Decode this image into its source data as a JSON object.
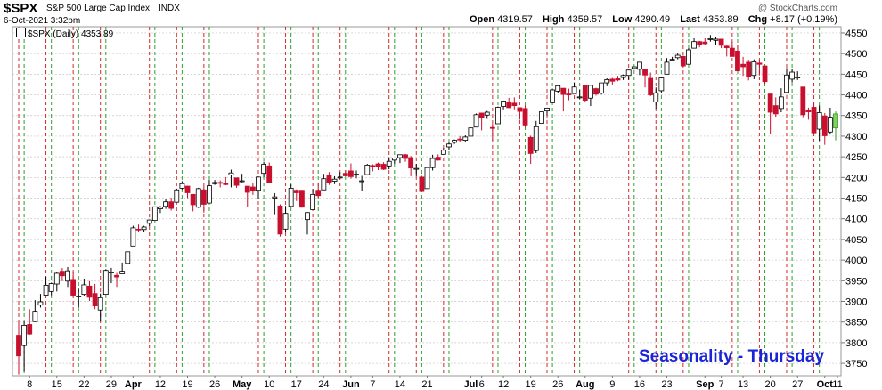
{
  "header": {
    "symbol": "$SPX",
    "name": "S&P 500 Large Cap Index",
    "exchange": "INDX",
    "date": "6-Oct-2021 3:32pm",
    "source": "@ StockCharts.com"
  },
  "ohlc": [
    {
      "label": "Open",
      "value": "4319.57"
    },
    {
      "label": "High",
      "value": "4359.57"
    },
    {
      "label": "Low",
      "value": "4290.49"
    },
    {
      "label": "Last",
      "value": "4353.89"
    },
    {
      "label": "Chg",
      "value": "+8.17 (+0.19%)"
    }
  ],
  "legend": {
    "text": "$SPX (Daily) 4353.89"
  },
  "annotation": {
    "text": "Seasonality - Thursday"
  },
  "colors": {
    "background": "#ffffff",
    "grid": "#c8c8c8",
    "up_candle_fill": "#ffffff",
    "down_candle_fill": "#c8102e",
    "last_candle_fill": "#7fd35a",
    "red_markers": "#d62728",
    "green_markers": "#2ca02c",
    "annotation": "#1a24d9"
  },
  "chart_data": {
    "type": "candlestick",
    "period": "daily",
    "series_name": "$SPX",
    "ylim": [
      3720,
      4565
    ],
    "y_ticks": [
      3750,
      3800,
      3850,
      3900,
      3950,
      4000,
      4050,
      4100,
      4150,
      4200,
      4250,
      4300,
      4350,
      4400,
      4450,
      4500,
      4550
    ],
    "x_tick_labels": [
      "8",
      "15",
      "22",
      "29",
      "Apr",
      "12",
      "19",
      "26",
      "May",
      "10",
      "17",
      "24",
      "Jun",
      "7",
      "14",
      "21",
      "Jul",
      "6",
      "12",
      "19",
      "26",
      "Aug",
      "9",
      "16",
      "23",
      "Sep",
      "7",
      "13",
      "20",
      "27",
      "Oct",
      "11"
    ],
    "bold_x_ticks": [
      "Apr",
      "May",
      "Jun",
      "Jul",
      "Aug",
      "Sep",
      "Oct"
    ],
    "red_dashed_lines": [
      "Mar 4",
      "Mar 11",
      "Mar 18",
      "Mar 25",
      "Apr 8",
      "Apr 15",
      "Apr 22",
      "May 6",
      "May 13",
      "May 20",
      "May 27",
      "Jun 10",
      "Jun 17",
      "Jun 24",
      "Jul 8",
      "Jul 15",
      "Jul 22",
      "Jul 29",
      "Aug 12",
      "Aug 19",
      "Aug 26",
      "Sep 9",
      "Sep 16",
      "Sep 23",
      "Sep 30"
    ],
    "green_dashed_lines": [
      "Mar 5",
      "Mar 12",
      "Mar 19",
      "Mar 26",
      "Apr 9",
      "Apr 16",
      "Apr 23",
      "May 7",
      "May 14",
      "May 21",
      "May 28",
      "Jun 11",
      "Jun 18",
      "Jun 25",
      "Jul 9",
      "Jul 16",
      "Jul 23",
      "Jul 30",
      "Aug 13",
      "Aug 20",
      "Aug 27",
      "Sep 10",
      "Sep 17",
      "Sep 24",
      "Oct 1"
    ],
    "candles": [
      {
        "d": "Mar 4",
        "o": 3818,
        "h": 3853,
        "l": 3723,
        "c": 3768
      },
      {
        "d": "Mar 5",
        "o": 3793,
        "h": 3851,
        "l": 3730,
        "c": 3842
      },
      {
        "d": "Mar 8",
        "o": 3844,
        "h": 3881,
        "l": 3819,
        "c": 3821
      },
      {
        "d": "Mar 9",
        "o": 3851,
        "h": 3903,
        "l": 3851,
        "c": 3876
      },
      {
        "d": "Mar 10",
        "o": 3891,
        "h": 3918,
        "l": 3885,
        "c": 3899
      },
      {
        "d": "Mar 11",
        "o": 3915,
        "h": 3960,
        "l": 3915,
        "c": 3939
      },
      {
        "d": "Mar 12",
        "o": 3924,
        "h": 3944,
        "l": 3915,
        "c": 3943
      },
      {
        "d": "Mar 15",
        "o": 3942,
        "h": 3970,
        "l": 3924,
        "c": 3968
      },
      {
        "d": "Mar 16",
        "o": 3973,
        "h": 3981,
        "l": 3949,
        "c": 3962
      },
      {
        "d": "Mar 17",
        "o": 3949,
        "h": 3983,
        "l": 3935,
        "c": 3974
      },
      {
        "d": "Mar 18",
        "o": 3953,
        "h": 3970,
        "l": 3913,
        "c": 3915
      },
      {
        "d": "Mar 19",
        "o": 3913,
        "h": 3930,
        "l": 3886,
        "c": 3913
      },
      {
        "d": "Mar 22",
        "o": 3917,
        "h": 3955,
        "l": 3914,
        "c": 3940
      },
      {
        "d": "Mar 23",
        "o": 3937,
        "h": 3949,
        "l": 3901,
        "c": 3910
      },
      {
        "d": "Mar 24",
        "o": 3919,
        "h": 3942,
        "l": 3881,
        "c": 3889
      },
      {
        "d": "Mar 25",
        "o": 3879,
        "h": 3919,
        "l": 3853,
        "c": 3909
      },
      {
        "d": "Mar 26",
        "o": 3917,
        "h": 3978,
        "l": 3917,
        "c": 3975
      },
      {
        "d": "Mar 29",
        "o": 3969,
        "h": 3981,
        "l": 3944,
        "c": 3971
      },
      {
        "d": "Mar 30",
        "o": 3963,
        "h": 3969,
        "l": 3935,
        "c": 3959
      },
      {
        "d": "Mar 31",
        "o": 3967,
        "h": 3994,
        "l": 3967,
        "c": 3973
      },
      {
        "d": "Apr 1",
        "o": 3992,
        "h": 4018,
        "l": 3992,
        "c": 4020
      },
      {
        "d": "Apr 5",
        "o": 4034,
        "h": 4083,
        "l": 4034,
        "c": 4078
      },
      {
        "d": "Apr 6",
        "o": 4075,
        "h": 4086,
        "l": 4068,
        "c": 4074
      },
      {
        "d": "Apr 7",
        "o": 4074,
        "h": 4083,
        "l": 4068,
        "c": 4080
      },
      {
        "d": "Apr 8",
        "o": 4089,
        "h": 4098,
        "l": 4082,
        "c": 4097
      },
      {
        "d": "Apr 9",
        "o": 4096,
        "h": 4129,
        "l": 4096,
        "c": 4129
      },
      {
        "d": "Apr 12",
        "o": 4124,
        "h": 4131,
        "l": 4114,
        "c": 4128
      },
      {
        "d": "Apr 13",
        "o": 4130,
        "h": 4148,
        "l": 4124,
        "c": 4141
      },
      {
        "d": "Apr 14",
        "o": 4141,
        "h": 4151,
        "l": 4120,
        "c": 4125
      },
      {
        "d": "Apr 15",
        "o": 4140,
        "h": 4173,
        "l": 4140,
        "c": 4170
      },
      {
        "d": "Apr 16",
        "o": 4174,
        "h": 4191,
        "l": 4171,
        "c": 4185
      },
      {
        "d": "Apr 19",
        "o": 4179,
        "h": 4180,
        "l": 4150,
        "c": 4163
      },
      {
        "d": "Apr 20",
        "o": 4159,
        "h": 4159,
        "l": 4118,
        "c": 4134
      },
      {
        "d": "Apr 21",
        "o": 4128,
        "h": 4175,
        "l": 4126,
        "c": 4173
      },
      {
        "d": "Apr 22",
        "o": 4170,
        "h": 4179,
        "l": 4115,
        "c": 4135
      },
      {
        "d": "Apr 23",
        "o": 4138,
        "h": 4194,
        "l": 4138,
        "c": 4180
      },
      {
        "d": "Apr 26",
        "o": 4185,
        "h": 4194,
        "l": 4182,
        "c": 4188
      },
      {
        "d": "Apr 27",
        "o": 4188,
        "h": 4193,
        "l": 4176,
        "c": 4187
      },
      {
        "d": "Apr 28",
        "o": 4185,
        "h": 4201,
        "l": 4181,
        "c": 4183
      },
      {
        "d": "Apr 29",
        "o": 4206,
        "h": 4219,
        "l": 4176,
        "c": 4211
      },
      {
        "d": "Apr 30",
        "o": 4199,
        "h": 4199,
        "l": 4175,
        "c": 4181
      },
      {
        "d": "May 3",
        "o": 4192,
        "h": 4209,
        "l": 4188,
        "c": 4192
      },
      {
        "d": "May 4",
        "o": 4179,
        "h": 4179,
        "l": 4128,
        "c": 4164
      },
      {
        "d": "May 5",
        "o": 4177,
        "h": 4187,
        "l": 4158,
        "c": 4167
      },
      {
        "d": "May 6",
        "o": 4169,
        "h": 4202,
        "l": 4147,
        "c": 4201
      },
      {
        "d": "May 7",
        "o": 4210,
        "h": 4238,
        "l": 4201,
        "c": 4232
      },
      {
        "d": "May 10",
        "o": 4228,
        "h": 4236,
        "l": 4188,
        "c": 4188
      },
      {
        "d": "May 11",
        "o": 4150,
        "h": 4162,
        "l": 4111,
        "c": 4153
      },
      {
        "d": "May 12",
        "o": 4131,
        "h": 4135,
        "l": 4057,
        "c": 4063
      },
      {
        "d": "May 13",
        "o": 4075,
        "h": 4131,
        "l": 4069,
        "c": 4113
      },
      {
        "d": "May 14",
        "o": 4130,
        "h": 4183,
        "l": 4130,
        "c": 4174
      },
      {
        "d": "May 17",
        "o": 4169,
        "h": 4171,
        "l": 4143,
        "c": 4163
      },
      {
        "d": "May 18",
        "o": 4169,
        "h": 4170,
        "l": 4127,
        "c": 4128
      },
      {
        "d": "May 19",
        "o": 4098,
        "h": 4116,
        "l": 4062,
        "c": 4115
      },
      {
        "d": "May 20",
        "o": 4122,
        "h": 4172,
        "l": 4122,
        "c": 4159
      },
      {
        "d": "May 21",
        "o": 4169,
        "h": 4188,
        "l": 4151,
        "c": 4156
      },
      {
        "d": "May 24",
        "o": 4170,
        "h": 4209,
        "l": 4170,
        "c": 4197
      },
      {
        "d": "May 25",
        "o": 4205,
        "h": 4213,
        "l": 4182,
        "c": 4188
      },
      {
        "d": "May 26",
        "o": 4191,
        "h": 4203,
        "l": 4184,
        "c": 4196
      },
      {
        "d": "May 27",
        "o": 4201,
        "h": 4213,
        "l": 4197,
        "c": 4201
      },
      {
        "d": "May 28",
        "o": 4210,
        "h": 4218,
        "l": 4203,
        "c": 4204
      },
      {
        "d": "Jun 1",
        "o": 4216,
        "h": 4234,
        "l": 4197,
        "c": 4202
      },
      {
        "d": "Jun 2",
        "o": 4206,
        "h": 4217,
        "l": 4198,
        "c": 4208
      },
      {
        "d": "Jun 3",
        "o": 4191,
        "h": 4204,
        "l": 4167,
        "c": 4192
      },
      {
        "d": "Jun 4",
        "o": 4207,
        "h": 4233,
        "l": 4207,
        "c": 4230
      },
      {
        "d": "Jun 7",
        "o": 4229,
        "h": 4232,
        "l": 4215,
        "c": 4227
      },
      {
        "d": "Jun 8",
        "o": 4233,
        "h": 4236,
        "l": 4218,
        "c": 4227
      },
      {
        "d": "Jun 9",
        "o": 4232,
        "h": 4237,
        "l": 4218,
        "c": 4220
      },
      {
        "d": "Jun 10",
        "o": 4228,
        "h": 4249,
        "l": 4220,
        "c": 4239
      },
      {
        "d": "Jun 11",
        "o": 4242,
        "h": 4248,
        "l": 4233,
        "c": 4247
      },
      {
        "d": "Jun 14",
        "o": 4248,
        "h": 4255,
        "l": 4235,
        "c": 4255
      },
      {
        "d": "Jun 15",
        "o": 4255,
        "h": 4257,
        "l": 4238,
        "c": 4246
      },
      {
        "d": "Jun 16",
        "o": 4248,
        "h": 4252,
        "l": 4203,
        "c": 4223
      },
      {
        "d": "Jun 17",
        "o": 4220,
        "h": 4233,
        "l": 4203,
        "c": 4222
      },
      {
        "d": "Jun 18",
        "o": 4201,
        "h": 4204,
        "l": 4165,
        "c": 4166
      },
      {
        "d": "Jun 21",
        "o": 4173,
        "h": 4226,
        "l": 4173,
        "c": 4224
      },
      {
        "d": "Jun 22",
        "o": 4224,
        "h": 4255,
        "l": 4217,
        "c": 4246
      },
      {
        "d": "Jun 23",
        "o": 4249,
        "h": 4256,
        "l": 4241,
        "c": 4242
      },
      {
        "d": "Jun 24",
        "o": 4256,
        "h": 4271,
        "l": 4256,
        "c": 4266
      },
      {
        "d": "Jun 25",
        "o": 4274,
        "h": 4286,
        "l": 4267,
        "c": 4281
      },
      {
        "d": "Jun 28",
        "o": 4285,
        "h": 4292,
        "l": 4281,
        "c": 4290
      },
      {
        "d": "Jun 29",
        "o": 4293,
        "h": 4300,
        "l": 4287,
        "c": 4291
      },
      {
        "d": "Jun 30",
        "o": 4290,
        "h": 4302,
        "l": 4287,
        "c": 4298
      },
      {
        "d": "Jul 1",
        "o": 4300,
        "h": 4320,
        "l": 4300,
        "c": 4320
      },
      {
        "d": "Jul 2",
        "o": 4322,
        "h": 4355,
        "l": 4322,
        "c": 4352
      },
      {
        "d": "Jul 6",
        "o": 4356,
        "h": 4356,
        "l": 4314,
        "c": 4344
      },
      {
        "d": "Jul 7",
        "o": 4351,
        "h": 4361,
        "l": 4342,
        "c": 4358
      },
      {
        "d": "Jul 8",
        "o": 4321,
        "h": 4330,
        "l": 4289,
        "c": 4320
      },
      {
        "d": "Jul 9",
        "o": 4330,
        "h": 4372,
        "l": 4330,
        "c": 4370
      },
      {
        "d": "Jul 12",
        "o": 4372,
        "h": 4386,
        "l": 4365,
        "c": 4385
      },
      {
        "d": "Jul 13",
        "o": 4381,
        "h": 4393,
        "l": 4368,
        "c": 4369
      },
      {
        "d": "Jul 14",
        "o": 4380,
        "h": 4394,
        "l": 4365,
        "c": 4374
      },
      {
        "d": "Jul 15",
        "o": 4369,
        "h": 4369,
        "l": 4340,
        "c": 4360
      },
      {
        "d": "Jul 16",
        "o": 4367,
        "h": 4375,
        "l": 4322,
        "c": 4327
      },
      {
        "d": "Jul 19",
        "o": 4297,
        "h": 4301,
        "l": 4233,
        "c": 4258
      },
      {
        "d": "Jul 20",
        "o": 4265,
        "h": 4337,
        "l": 4259,
        "c": 4323
      },
      {
        "d": "Jul 21",
        "o": 4331,
        "h": 4359,
        "l": 4331,
        "c": 4359
      },
      {
        "d": "Jul 22",
        "o": 4361,
        "h": 4369,
        "l": 4350,
        "c": 4368
      },
      {
        "d": "Jul 23",
        "o": 4381,
        "h": 4415,
        "l": 4381,
        "c": 4412
      },
      {
        "d": "Jul 26",
        "o": 4409,
        "h": 4422,
        "l": 4405,
        "c": 4422
      },
      {
        "d": "Jul 27",
        "o": 4416,
        "h": 4416,
        "l": 4360,
        "c": 4401
      },
      {
        "d": "Jul 28",
        "o": 4402,
        "h": 4415,
        "l": 4387,
        "c": 4400
      },
      {
        "d": "Jul 29",
        "o": 4403,
        "h": 4430,
        "l": 4403,
        "c": 4419
      },
      {
        "d": "Jul 30",
        "o": 4395,
        "h": 4412,
        "l": 4389,
        "c": 4395
      },
      {
        "d": "Aug 2",
        "o": 4422,
        "h": 4422,
        "l": 4384,
        "c": 4387
      },
      {
        "d": "Aug 3",
        "o": 4392,
        "h": 4423,
        "l": 4373,
        "c": 4423
      },
      {
        "d": "Aug 4",
        "o": 4415,
        "h": 4417,
        "l": 4398,
        "c": 4402
      },
      {
        "d": "Aug 5",
        "o": 4404,
        "h": 4429,
        "l": 4401,
        "c": 4429
      },
      {
        "d": "Aug 6",
        "o": 4429,
        "h": 4440,
        "l": 4421,
        "c": 4437
      },
      {
        "d": "Aug 9",
        "o": 4438,
        "h": 4441,
        "l": 4425,
        "c": 4433
      },
      {
        "d": "Aug 10",
        "o": 4439,
        "h": 4446,
        "l": 4433,
        "c": 4436
      },
      {
        "d": "Aug 11",
        "o": 4442,
        "h": 4449,
        "l": 4436,
        "c": 4447
      },
      {
        "d": "Aug 12",
        "o": 4447,
        "h": 4461,
        "l": 4436,
        "c": 4460
      },
      {
        "d": "Aug 13",
        "o": 4464,
        "h": 4468,
        "l": 4461,
        "c": 4468
      },
      {
        "d": "Aug 16",
        "o": 4462,
        "h": 4480,
        "l": 4448,
        "c": 4479
      },
      {
        "d": "Aug 17",
        "o": 4462,
        "h": 4462,
        "l": 4418,
        "c": 4448
      },
      {
        "d": "Aug 18",
        "o": 4440,
        "h": 4454,
        "l": 4397,
        "c": 4400
      },
      {
        "d": "Aug 19",
        "o": 4383,
        "h": 4418,
        "l": 4367,
        "c": 4405
      },
      {
        "d": "Aug 20",
        "o": 4410,
        "h": 4444,
        "l": 4406,
        "c": 4441
      },
      {
        "d": "Aug 23",
        "o": 4450,
        "h": 4489,
        "l": 4450,
        "c": 4479
      },
      {
        "d": "Aug 24",
        "o": 4484,
        "h": 4492,
        "l": 4482,
        "c": 4486
      },
      {
        "d": "Aug 25",
        "o": 4490,
        "h": 4501,
        "l": 4486,
        "c": 4496
      },
      {
        "d": "Aug 26",
        "o": 4493,
        "h": 4495,
        "l": 4468,
        "c": 4470
      },
      {
        "d": "Aug 27",
        "o": 4474,
        "h": 4513,
        "l": 4474,
        "c": 4509
      },
      {
        "d": "Aug 30",
        "o": 4513,
        "h": 4537,
        "l": 4513,
        "c": 4529
      },
      {
        "d": "Aug 31",
        "o": 4529,
        "h": 4531,
        "l": 4515,
        "c": 4522
      },
      {
        "d": "Sep 1",
        "o": 4528,
        "h": 4537,
        "l": 4522,
        "c": 4524
      },
      {
        "d": "Sep 2",
        "o": 4534,
        "h": 4545,
        "l": 4529,
        "c": 4536
      },
      {
        "d": "Sep 3",
        "o": 4532,
        "h": 4541,
        "l": 4521,
        "c": 4535
      },
      {
        "d": "Sep 7",
        "o": 4535,
        "h": 4535,
        "l": 4513,
        "c": 4520
      },
      {
        "d": "Sep 8",
        "o": 4518,
        "h": 4521,
        "l": 4493,
        "c": 4514
      },
      {
        "d": "Sep 9",
        "o": 4513,
        "h": 4529,
        "l": 4493,
        "c": 4493
      },
      {
        "d": "Sep 10",
        "o": 4506,
        "h": 4520,
        "l": 4457,
        "c": 4458
      },
      {
        "d": "Sep 13",
        "o": 4474,
        "h": 4492,
        "l": 4446,
        "c": 4468
      },
      {
        "d": "Sep 14",
        "o": 4479,
        "h": 4485,
        "l": 4435,
        "c": 4443
      },
      {
        "d": "Sep 15",
        "o": 4447,
        "h": 4486,
        "l": 4438,
        "c": 4480
      },
      {
        "d": "Sep 16",
        "o": 4477,
        "h": 4485,
        "l": 4447,
        "c": 4474
      },
      {
        "d": "Sep 17",
        "o": 4470,
        "h": 4471,
        "l": 4427,
        "c": 4432
      },
      {
        "d": "Sep 20",
        "o": 4402,
        "h": 4403,
        "l": 4305,
        "c": 4358
      },
      {
        "d": "Sep 21",
        "o": 4374,
        "h": 4394,
        "l": 4347,
        "c": 4354
      },
      {
        "d": "Sep 22",
        "o": 4367,
        "h": 4416,
        "l": 4358,
        "c": 4395
      },
      {
        "d": "Sep 23",
        "o": 4406,
        "h": 4465,
        "l": 4406,
        "c": 4448
      },
      {
        "d": "Sep 24",
        "o": 4438,
        "h": 4463,
        "l": 4430,
        "c": 4455
      },
      {
        "d": "Sep 27",
        "o": 4442,
        "h": 4457,
        "l": 4436,
        "c": 4443
      },
      {
        "d": "Sep 28",
        "o": 4419,
        "h": 4419,
        "l": 4346,
        "c": 4352
      },
      {
        "d": "Sep 29",
        "o": 4362,
        "h": 4369,
        "l": 4340,
        "c": 4359
      },
      {
        "d": "Sep 30",
        "o": 4370,
        "h": 4382,
        "l": 4306,
        "c": 4308
      },
      {
        "d": "Oct 1",
        "o": 4317,
        "h": 4375,
        "l": 4289,
        "c": 4357
      },
      {
        "d": "Oct 4",
        "o": 4349,
        "h": 4356,
        "l": 4279,
        "c": 4301
      },
      {
        "d": "Oct 5",
        "o": 4310,
        "h": 4369,
        "l": 4304,
        "c": 4346
      },
      {
        "d": "Oct 6",
        "o": 4320,
        "h": 4360,
        "l": 4290,
        "c": 4354
      }
    ]
  }
}
